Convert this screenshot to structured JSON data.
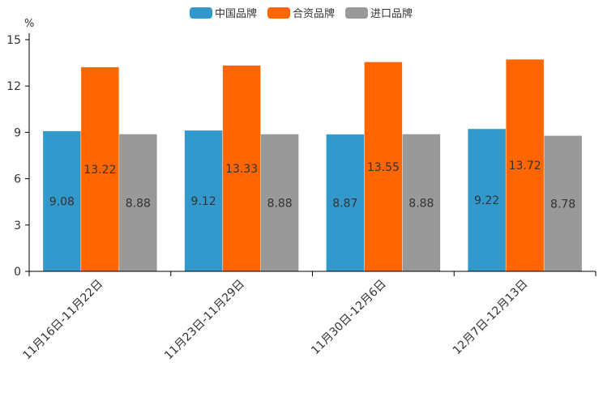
{
  "chart_data": {
    "type": "bar",
    "title": "",
    "ylabel": "%",
    "xlabel": "",
    "ylim": [
      0,
      15
    ],
    "yticks": [
      0,
      3,
      6,
      9,
      12,
      15
    ],
    "grid": false,
    "legend_position": "top-center",
    "categories": [
      "11月16日-11月22日",
      "11月23日-11月29日",
      "11月30日-12月6日",
      "12月7日-12月13日"
    ],
    "series": [
      {
        "name": "中国品牌",
        "color": "#3399cc",
        "values": [
          9.08,
          9.12,
          8.87,
          9.22
        ],
        "labels": [
          "9.08",
          "9.12",
          "8.87",
          "9.22"
        ]
      },
      {
        "name": "合资品牌",
        "color": "#ff6600",
        "values": [
          13.22,
          13.33,
          13.55,
          13.72
        ],
        "labels": [
          "13.22",
          "13.33",
          "13.55",
          "13.72"
        ]
      },
      {
        "name": "进口品牌",
        "color": "#999999",
        "values": [
          8.88,
          8.88,
          8.88,
          8.78
        ],
        "labels": [
          "8.88",
          "8.88",
          "8.88",
          "8.78"
        ]
      }
    ]
  }
}
